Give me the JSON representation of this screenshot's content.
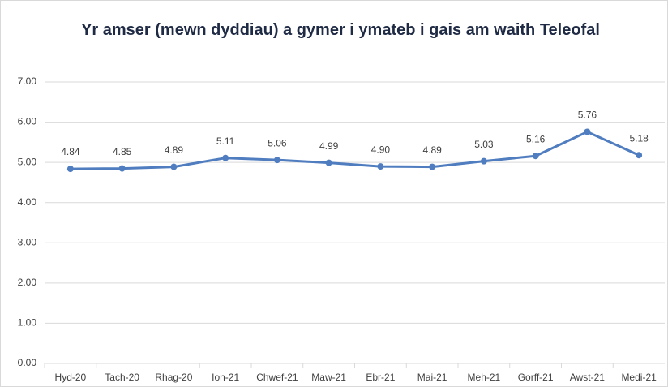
{
  "chart_data": {
    "type": "line",
    "title": "Yr amser (mewn dyddiau) a gymer i ymateb i gais am waith Teleofal",
    "categories": [
      "Hyd-20",
      "Tach-20",
      "Rhag-20",
      "Ion-21",
      "Chwef-21",
      "Maw-21",
      "Ebr-21",
      "Mai-21",
      "Meh-21",
      "Gorff-21",
      "Awst-21",
      "Medi-21"
    ],
    "series": [
      {
        "name": "Teleofal",
        "color": "#4f7dbf",
        "values": [
          4.84,
          4.85,
          4.89,
          5.11,
          5.06,
          4.99,
          4.9,
          4.89,
          5.03,
          5.16,
          5.76,
          5.18
        ],
        "value_labels": [
          "4.84",
          "4.85",
          "4.89",
          "5.11",
          "5.06",
          "4.99",
          "4.90",
          "4.89",
          "5.03",
          "5.16",
          "5.76",
          "5.18"
        ]
      }
    ],
    "ylim": [
      0,
      7
    ],
    "yticks": [
      {
        "value": 0,
        "label": "0.00"
      },
      {
        "value": 1,
        "label": "1.00"
      },
      {
        "value": 2,
        "label": "2.00"
      },
      {
        "value": 3,
        "label": "3.00"
      },
      {
        "value": 4,
        "label": "4.00"
      },
      {
        "value": 5,
        "label": "5.00"
      },
      {
        "value": 6,
        "label": "6.00"
      },
      {
        "value": 7,
        "label": "7.00"
      }
    ],
    "grid": true
  }
}
